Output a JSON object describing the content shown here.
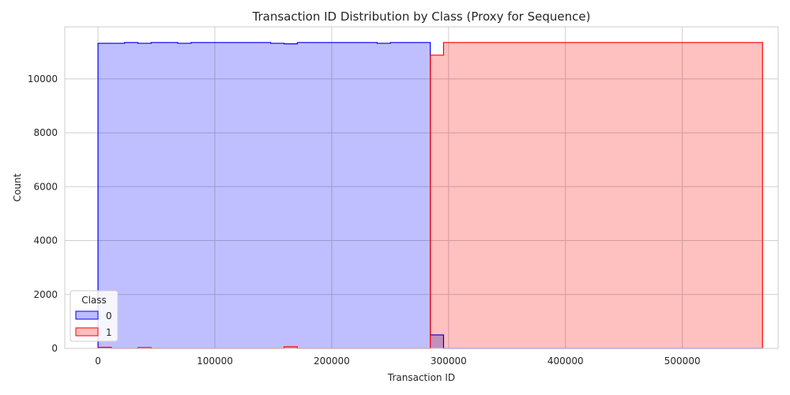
{
  "chart_data": {
    "type": "histogram-step",
    "title": "Transaction ID Distribution by Class (Proxy for Sequence)",
    "xlabel": "Transaction ID",
    "ylabel": "Count",
    "xlim": [
      -28430,
      582000
    ],
    "ylim": [
      0,
      11930
    ],
    "x_ticks": [
      0,
      100000,
      200000,
      300000,
      400000,
      500000
    ],
    "y_ticks": [
      0,
      2000,
      4000,
      6000,
      8000,
      10000
    ],
    "grid": true,
    "legend": {
      "title": "Class",
      "placement": "bottom-left"
    },
    "bin_start": 0,
    "bin_width": 11372.56,
    "series": [
      {
        "name": "0",
        "line_color": "#0000ff",
        "fill_color": "#bcbcff",
        "values": [
          11320,
          11320,
          11350,
          11320,
          11350,
          11350,
          11320,
          11350,
          11350,
          11350,
          11350,
          11350,
          11350,
          11320,
          11300,
          11350,
          11350,
          11350,
          11350,
          11350,
          11350,
          11320,
          11350,
          11350,
          11350,
          500,
          0,
          0,
          0,
          0,
          0,
          0,
          0,
          0,
          0,
          0,
          0,
          0,
          0,
          0,
          0,
          0,
          0,
          0,
          0,
          0,
          0,
          0,
          0,
          0
        ]
      },
      {
        "name": "1",
        "line_color": "#ff0000",
        "fill_color": "#ffbdbd",
        "values": [
          40,
          0,
          0,
          30,
          0,
          0,
          0,
          0,
          0,
          0,
          0,
          0,
          0,
          0,
          60,
          0,
          0,
          0,
          0,
          0,
          0,
          0,
          0,
          0,
          0,
          10880,
          11350,
          11350,
          11350,
          11350,
          11350,
          11350,
          11350,
          11350,
          11350,
          11350,
          11350,
          11350,
          11350,
          11350,
          11350,
          11350,
          11350,
          11350,
          11350,
          11350,
          11350,
          11350,
          11350,
          11350
        ]
      }
    ]
  }
}
